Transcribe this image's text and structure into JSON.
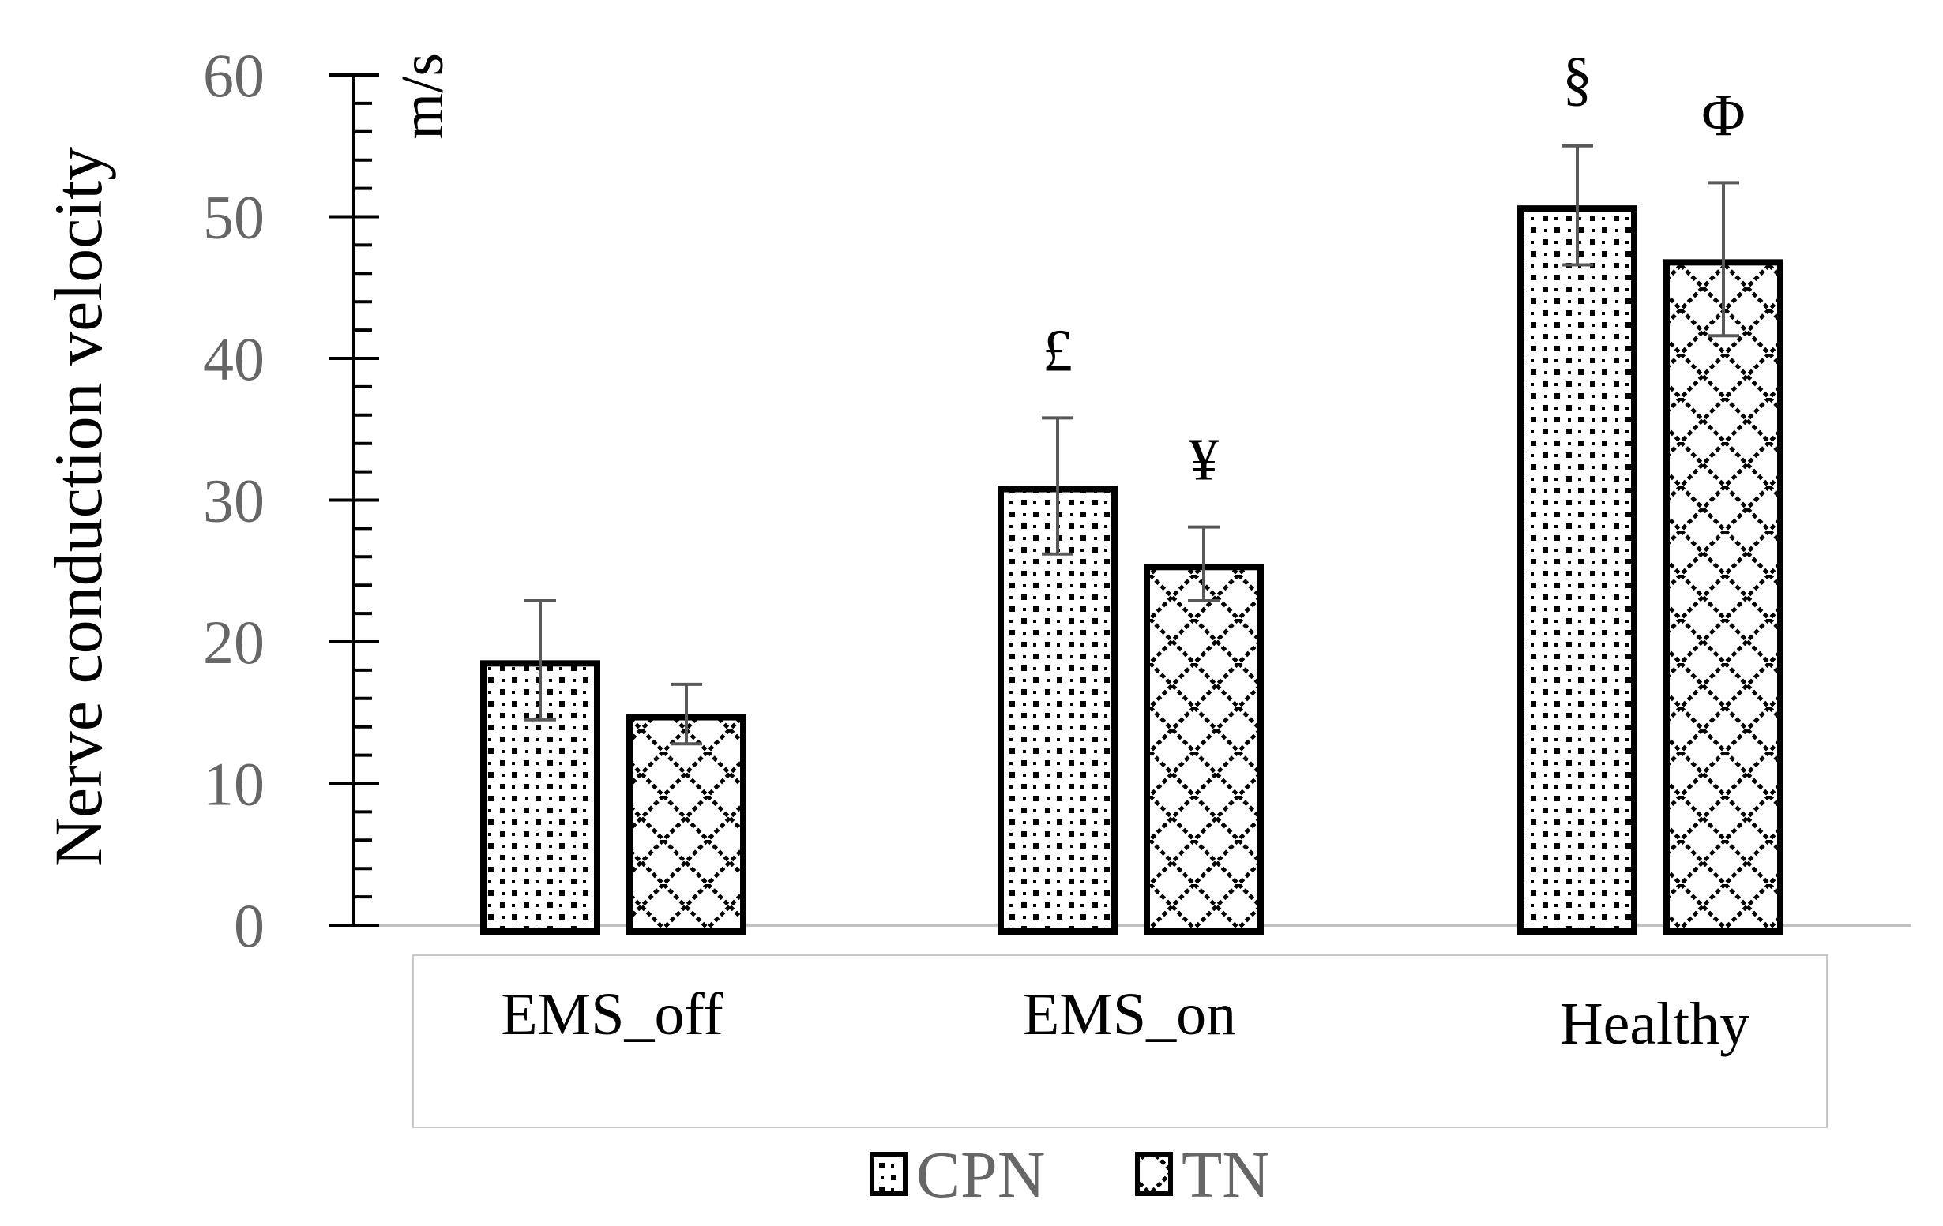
{
  "chart_data": {
    "type": "bar",
    "title": "",
    "xlabel": "",
    "ylabel": "Nerve conduction velocity",
    "yunit": "m/s",
    "ylim": [
      0,
      60
    ],
    "yticks": [
      0,
      10,
      20,
      30,
      40,
      50,
      60
    ],
    "minor_tick_step": 2,
    "grid": false,
    "legend_position": "bottom",
    "categories": [
      "EMS_off",
      "EMS_on",
      "Healthy"
    ],
    "series": [
      {
        "name": "CPN",
        "pattern": "dots",
        "values": [
          18.7,
          31.0,
          50.8
        ],
        "error": [
          4.2,
          4.8,
          4.2
        ],
        "annotations": [
          "",
          "£",
          "§"
        ]
      },
      {
        "name": "TN",
        "pattern": "crosshatch",
        "values": [
          14.9,
          25.5,
          47.0
        ],
        "error": [
          2.1,
          2.6,
          5.4
        ],
        "annotations": [
          "",
          "¥",
          "Φ"
        ]
      }
    ]
  },
  "colors": {
    "bar_border": "#000000",
    "error_bar": "#595959",
    "tick_label": "#666666",
    "baseline": "#c0c0c0"
  }
}
